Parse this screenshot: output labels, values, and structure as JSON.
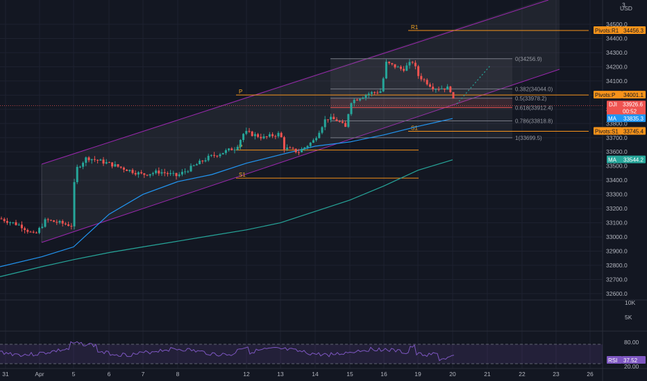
{
  "price_axis": {
    "currency": "USD",
    "top_label": "3",
    "ticks": [
      "34500.0",
      "34400.0",
      "34300.0",
      "34200.0",
      "34100.0",
      "34000.0",
      "33900.0",
      "33800.0",
      "33700.0",
      "33600.0",
      "33500.0",
      "33400.0",
      "33300.0",
      "33200.0",
      "33100.0",
      "33000.0",
      "32900.0",
      "32800.0",
      "32700.0",
      "32600.0"
    ]
  },
  "volume_axis": {
    "ticks": [
      "10K",
      "5K"
    ]
  },
  "rsi_axis": {
    "ticks": [
      "80.00",
      "20.00"
    ]
  },
  "time_axis": {
    "labels": [
      "31",
      "Apr",
      "5",
      "6",
      "7",
      "8",
      "12",
      "13",
      "14",
      "15",
      "16",
      "19",
      "20",
      "21",
      "22",
      "23",
      "26"
    ]
  },
  "fib_levels": [
    {
      "label": "0(34256.9)",
      "value": 34256.9
    },
    {
      "label": "0.382(34044.0)",
      "value": 34044.0
    },
    {
      "label": "0.5(33978.2)",
      "value": 33978.2
    },
    {
      "label": "0.618(33912.4)",
      "value": 33912.4
    },
    {
      "label": "0.786(33818.8)",
      "value": 33818.8
    },
    {
      "label": "1(33699.5)",
      "value": 33699.5
    }
  ],
  "pivots": [
    {
      "label": "R1",
      "value": 34456.3
    },
    {
      "label": "P",
      "value": 34001.1
    },
    {
      "label": "S1",
      "value": 33745.4
    },
    {
      "label": "P",
      "value": 33613
    },
    {
      "label": "S1",
      "value": 33415
    }
  ],
  "tags": [
    {
      "text": "Pivots:R1",
      "value": "34456.3",
      "color": "#f7931a",
      "text_color": "#131722"
    },
    {
      "text": "Pivots:P",
      "value": "34001.1",
      "color": "#f7931a",
      "text_color": "#131722"
    },
    {
      "text": "DJI",
      "value": "33926.6",
      "time": "00:52",
      "color": "#ef5350",
      "text_color": "#ffffff"
    },
    {
      "text": "MA",
      "value": "33835.3",
      "color": "#2196f3",
      "text_color": "#ffffff"
    },
    {
      "text": "Pivots:S1",
      "value": "33745.4",
      "color": "#f7931a",
      "text_color": "#131722"
    },
    {
      "text": "MA",
      "value": "33544.2",
      "color": "#26a69a",
      "text_color": "#ffffff"
    },
    {
      "text": "RSI",
      "value": "37.52",
      "color": "#7e57c2",
      "text_color": "#ffffff"
    }
  ],
  "colors": {
    "background": "#131722",
    "up": "#26a69a",
    "down": "#ef5350",
    "channel": "#9c27b0",
    "pivot": "#f7931a",
    "ma_fast": "#2196f3",
    "ma_slow": "#26a69a",
    "rsi": "#7e57c2",
    "fib": "#787b86"
  },
  "chart_data": {
    "type": "candlestick",
    "series_prices": {
      "close_points": [
        [
          "31",
          33100
        ],
        [
          "Apr",
          33030
        ],
        [
          "5",
          33150
        ],
        [
          "5",
          33540
        ],
        [
          "6",
          33520
        ],
        [
          "7",
          33420
        ],
        [
          "8",
          33460
        ],
        [
          "12",
          33730
        ],
        [
          "13",
          33640
        ],
        [
          "14",
          33840
        ],
        [
          "15",
          34010
        ],
        [
          "16",
          34200
        ],
        [
          "19",
          34070
        ],
        [
          "20",
          33926.6
        ]
      ]
    },
    "ma_fast_last": 33835.3,
    "ma_slow_last": 33544.2,
    "rsi_last": 37.52,
    "rsi_levels": [
      80,
      20
    ],
    "ylim": [
      32550,
      34560
    ]
  }
}
